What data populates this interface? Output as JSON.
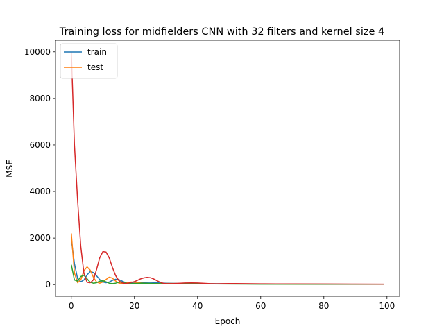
{
  "chart_data": {
    "type": "line",
    "title": "Training loss for midfielders CNN with 32 filters and kernel size 4",
    "xlabel": "Epoch",
    "ylabel": "MSE",
    "xlim": [
      -5,
      104
    ],
    "ylim": [
      -500,
      10500
    ],
    "xticks": [
      0,
      20,
      40,
      60,
      80,
      100
    ],
    "yticks": [
      0,
      2000,
      4000,
      6000,
      8000,
      10000
    ],
    "grid": false,
    "legend": {
      "position": "top-left",
      "entries": [
        "train",
        "test"
      ]
    },
    "series": [
      {
        "name": "train",
        "color": "#1f77b4",
        "x": [
          0,
          1,
          2,
          3,
          4,
          5,
          6,
          7,
          8,
          9,
          10,
          11,
          12,
          13,
          14,
          15,
          16,
          17,
          18,
          19,
          20,
          22,
          24,
          26,
          28,
          30,
          35,
          40,
          45,
          50,
          55,
          60,
          70,
          80,
          90,
          99
        ],
        "y": [
          1950,
          900,
          250,
          120,
          200,
          420,
          560,
          520,
          380,
          220,
          110,
          80,
          110,
          180,
          230,
          220,
          160,
          100,
          70,
          60,
          70,
          90,
          100,
          90,
          70,
          60,
          50,
          45,
          40,
          35,
          30,
          25,
          20,
          18,
          15,
          12
        ]
      },
      {
        "name": "test",
        "color": "#ff7f0e",
        "x": [
          0,
          1,
          2,
          3,
          4,
          5,
          6,
          7,
          8,
          9,
          10,
          11,
          12,
          13,
          14,
          15,
          16,
          17,
          18,
          19,
          20,
          22,
          24,
          26,
          28,
          30,
          35,
          40,
          45,
          50,
          55,
          60,
          70,
          80,
          90,
          99
        ],
        "y": [
          2200,
          500,
          80,
          200,
          600,
          760,
          620,
          320,
          110,
          60,
          110,
          220,
          320,
          280,
          160,
          70,
          40,
          60,
          90,
          110,
          100,
          70,
          50,
          40,
          45,
          50,
          45,
          40,
          35,
          30,
          28,
          25,
          20,
          18,
          15,
          12
        ]
      },
      {
        "name": "",
        "color": "#2ca02c",
        "x": [
          0,
          1,
          2,
          3,
          4,
          5,
          6,
          7,
          8,
          9,
          10,
          11,
          12,
          13,
          14,
          15,
          16,
          17,
          18,
          19,
          20,
          22,
          24,
          26,
          28,
          30,
          35,
          40,
          45,
          50,
          55,
          60,
          70,
          80,
          90,
          99
        ],
        "y": [
          850,
          200,
          150,
          350,
          400,
          250,
          100,
          60,
          80,
          150,
          170,
          120,
          60,
          40,
          60,
          100,
          110,
          80,
          50,
          40,
          45,
          60,
          55,
          45,
          40,
          38,
          35,
          30,
          28,
          25,
          22,
          20,
          18,
          16,
          14,
          12
        ]
      },
      {
        "name": "",
        "color": "#d62728",
        "x": [
          0,
          1,
          2,
          3,
          4,
          5,
          6,
          7,
          8,
          9,
          10,
          11,
          12,
          13,
          14,
          15,
          16,
          17,
          18,
          19,
          20,
          21,
          22,
          23,
          24,
          25,
          26,
          27,
          28,
          29,
          30,
          32,
          34,
          36,
          38,
          40,
          42,
          44,
          46,
          48,
          50,
          52,
          55,
          60,
          65,
          70,
          80,
          90,
          99
        ],
        "y": [
          10000,
          6000,
          3600,
          1650,
          480,
          100,
          80,
          200,
          650,
          1150,
          1420,
          1400,
          1150,
          750,
          400,
          180,
          80,
          50,
          60,
          90,
          130,
          190,
          250,
          290,
          310,
          300,
          250,
          180,
          110,
          60,
          40,
          40,
          55,
          70,
          75,
          70,
          55,
          40,
          35,
          40,
          45,
          45,
          40,
          35,
          30,
          28,
          25,
          22,
          20
        ]
      }
    ]
  }
}
